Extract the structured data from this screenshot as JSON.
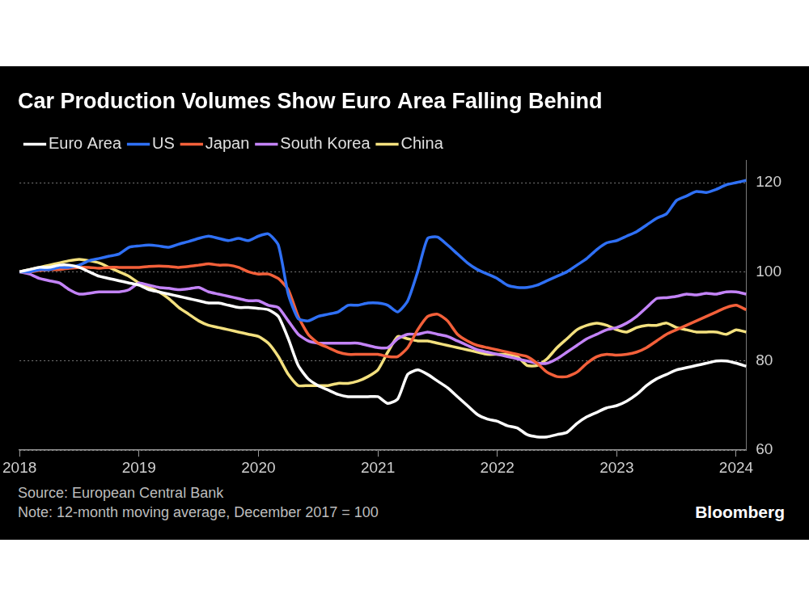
{
  "chart_data": {
    "type": "line",
    "title": "Car Production Volumes Show Euro Area Falling Behind",
    "source": "Source: European Central Bank",
    "note": "Note: 12-month moving average, December 2017 = 100",
    "credit": "Bloomberg",
    "legend": "top-left",
    "grid": true,
    "categories": [
      "2018",
      null,
      null,
      null,
      null,
      null,
      null,
      null,
      null,
      null,
      null,
      null,
      "2019",
      null,
      null,
      null,
      null,
      null,
      null,
      null,
      null,
      null,
      null,
      null,
      "2020",
      null,
      null,
      null,
      null,
      null,
      null,
      null,
      null,
      null,
      null,
      null,
      "2021",
      null,
      null,
      null,
      null,
      null,
      null,
      null,
      null,
      null,
      null,
      null,
      "2022",
      null,
      null,
      null,
      null,
      null,
      null,
      null,
      null,
      null,
      null,
      null,
      "2023",
      null,
      null,
      null,
      null,
      null,
      null,
      null,
      null,
      null,
      null,
      null,
      "2024",
      null
    ],
    "ylim": [
      60,
      125
    ],
    "yticks": [
      60,
      80,
      100,
      120
    ],
    "series": [
      {
        "name": "Euro Area",
        "color": "#ffffff",
        "values": [
          100,
          100.5,
          101,
          101,
          101.5,
          101.5,
          101,
          100,
          99,
          98.5,
          98,
          97.5,
          97,
          96,
          95.5,
          95,
          94.5,
          94,
          93.5,
          93,
          93,
          92.5,
          92,
          92,
          91.8,
          91.5,
          90,
          85,
          79,
          76,
          74.5,
          73.5,
          72.5,
          72,
          72,
          72,
          72,
          70.5,
          71.5,
          77,
          78,
          77,
          75.5,
          74,
          72,
          70,
          68,
          67,
          66.5,
          65.5,
          65,
          63.5,
          63,
          63,
          63.5,
          64,
          66,
          67.5,
          68.5,
          69.5,
          70,
          71,
          72.5,
          74.5,
          76,
          77,
          78,
          78.5,
          79,
          79.5,
          80,
          80,
          79.5,
          78.8
        ]
      },
      {
        "name": "US",
        "color": "#2f70f5",
        "values": [
          100,
          100,
          100.5,
          100.5,
          101,
          101,
          101.5,
          102.5,
          103,
          103.5,
          104,
          105.5,
          105.8,
          106,
          105.8,
          105.5,
          106.2,
          106.8,
          107.5,
          108,
          107.5,
          107,
          107.5,
          107,
          108,
          108.5,
          106,
          95,
          89.5,
          89,
          90,
          90.5,
          91,
          92.5,
          92.5,
          93,
          93,
          92.5,
          91,
          93.5,
          100,
          107.5,
          107.8,
          106,
          104,
          102,
          100.5,
          99.5,
          98.5,
          97,
          96.5,
          96.5,
          97,
          98,
          99,
          100,
          101.5,
          103,
          105,
          106.5,
          107,
          108,
          109,
          110.5,
          112,
          113,
          116,
          117,
          118,
          117.8,
          118.5,
          119.5,
          120,
          120.5
        ]
      },
      {
        "name": "Japan",
        "color": "#f3603a",
        "values": [
          100,
          100,
          100.3,
          100.5,
          100.5,
          100.8,
          101,
          101,
          100.8,
          101,
          101,
          101,
          101,
          101.2,
          101.3,
          101.2,
          101,
          101.2,
          101.5,
          101.8,
          101.5,
          101.5,
          101,
          100,
          99.5,
          99.5,
          98.5,
          96,
          90,
          86,
          84,
          83,
          82,
          81.5,
          81.5,
          81.5,
          81.5,
          81,
          81,
          83,
          87,
          90,
          90.5,
          89,
          86,
          84.5,
          83.5,
          83,
          82.5,
          82,
          81.5,
          81,
          79.5,
          77.5,
          76.5,
          76.5,
          77.5,
          79.5,
          81,
          81.5,
          81.3,
          81.5,
          82,
          83,
          84.5,
          86,
          87,
          88,
          89,
          90,
          91,
          92,
          92.5,
          91.5
        ]
      },
      {
        "name": "South Korea",
        "color": "#c383f7",
        "values": [
          100,
          99.5,
          98.5,
          98,
          97.5,
          96,
          95,
          95.2,
          95.5,
          95.5,
          95.5,
          96,
          97.5,
          97,
          96.5,
          96.3,
          96,
          96.2,
          96.5,
          95.5,
          95,
          94.5,
          94,
          93.5,
          93.5,
          92.5,
          92,
          89,
          86,
          84.5,
          84,
          84,
          84,
          84,
          84,
          83.5,
          83,
          83,
          85,
          86,
          86,
          86.5,
          86,
          85.5,
          84.5,
          83.5,
          82.5,
          82,
          81.5,
          81,
          80.5,
          80,
          79.5,
          79.5,
          80.5,
          82,
          83.5,
          85,
          86,
          87,
          87.5,
          88.5,
          90,
          92,
          94,
          94.2,
          94.5,
          95,
          94.8,
          95.2,
          95,
          95.5,
          95.5,
          95
        ]
      },
      {
        "name": "China",
        "color": "#f3e07e",
        "values": [
          100,
          100.5,
          101,
          101.5,
          102,
          102.5,
          102.8,
          102.5,
          102,
          101,
          100,
          99,
          97.5,
          96.5,
          95.5,
          94,
          92,
          90.5,
          89,
          88,
          87.5,
          87,
          86.5,
          86,
          85.5,
          84,
          81,
          77,
          74.5,
          74.5,
          74.5,
          74.5,
          75,
          75,
          75.5,
          76.5,
          78,
          82,
          85.5,
          85,
          84.5,
          84.5,
          84,
          83.5,
          83,
          82.5,
          82,
          81.5,
          81.5,
          81.5,
          81,
          79,
          79,
          80.5,
          83,
          85,
          87,
          88,
          88.5,
          88,
          87,
          86.5,
          87.5,
          88,
          88,
          88.5,
          87.5,
          87,
          86.5,
          86.5,
          86.5,
          86,
          87,
          86.5
        ]
      }
    ]
  }
}
